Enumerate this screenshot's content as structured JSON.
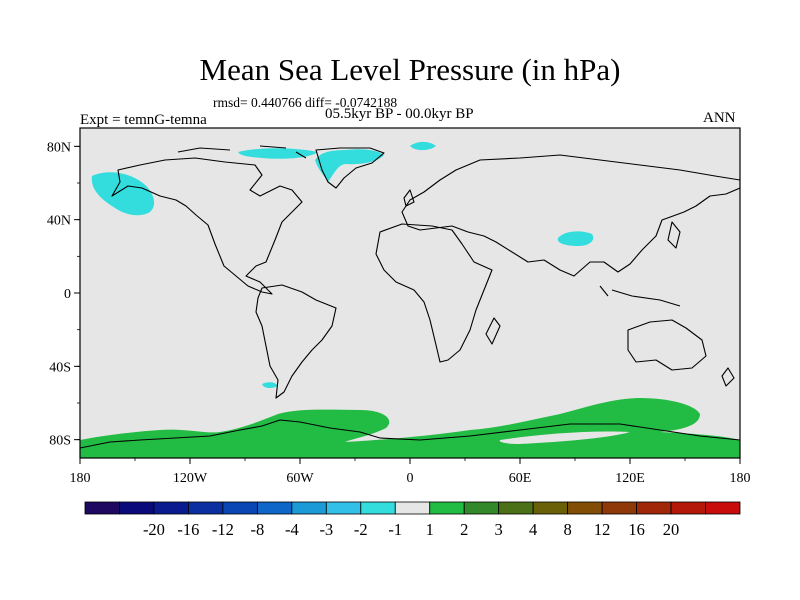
{
  "header": {
    "title": "Mean Sea Level Pressure (in hPa)",
    "stats": "rmsd= 0.440766 diff= -0.0742188",
    "period": "05.5kyr BP - 00.0kyr BP",
    "experiment": "Expt = temnG-temna",
    "season": "ANN"
  },
  "map": {
    "projection": "cylindrical-equidistant",
    "lon_range": [
      -180,
      180
    ],
    "lat_range": [
      -90,
      90
    ],
    "x_tick_labels": [
      "180",
      "120W",
      "60W",
      "0",
      "60E",
      "120E",
      "180"
    ],
    "y_tick_labels": [
      "80N",
      "40N",
      "0",
      "40S",
      "80S"
    ],
    "background_color": "#e6e6e6",
    "positive_color": "#22bb44",
    "negative_color": "#33dddd"
  },
  "colorbar": {
    "labels": [
      "-20",
      "-16",
      "-12",
      "-8",
      "-4",
      "-3",
      "-2",
      "-1",
      "1",
      "2",
      "3",
      "4",
      "8",
      "12",
      "16",
      "20"
    ],
    "colors": [
      "#1f0860",
      "#0a0a7a",
      "#0a1b90",
      "#0b2fa0",
      "#0a47b4",
      "#0e66c8",
      "#1c9ad8",
      "#33c0e8",
      "#33dddd",
      "#e6e6e6",
      "#22bb44",
      "#33882a",
      "#4c7018",
      "#6a6008",
      "#824e06",
      "#8f3808",
      "#a02808",
      "#b41808",
      "#c80c0c"
    ]
  }
}
